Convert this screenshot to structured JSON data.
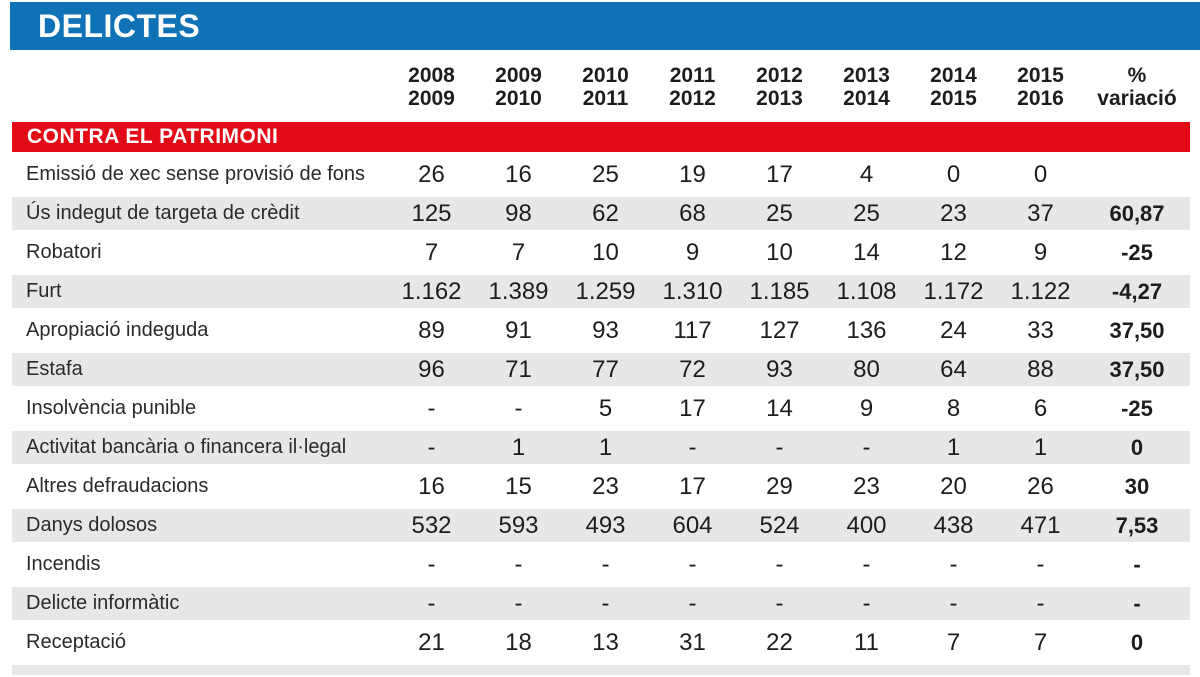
{
  "title": "DELICTES",
  "section": "CONTRA EL PATRIMONI",
  "colors": {
    "header_blue": "#0f72b6",
    "section_red": "#e30a17",
    "row_shade": "#e8e7e7",
    "text": "#1d1d1b"
  },
  "chart_data": {
    "type": "table",
    "title": "DELICTES",
    "section": "CONTRA EL PATRIMONI",
    "columns": [
      {
        "line1": "2008",
        "line2": "2009"
      },
      {
        "line1": "2009",
        "line2": "2010"
      },
      {
        "line1": "2010",
        "line2": "2011"
      },
      {
        "line1": "2011",
        "line2": "2012"
      },
      {
        "line1": "2012",
        "line2": "2013"
      },
      {
        "line1": "2013",
        "line2": "2014"
      },
      {
        "line1": "2014",
        "line2": "2015"
      },
      {
        "line1": "2015",
        "line2": "2016"
      },
      {
        "line1": "%",
        "line2": "variació"
      }
    ],
    "rows": [
      {
        "label": "Emissió de xec sense provisió de fons",
        "values": [
          "26",
          "16",
          "25",
          "19",
          "17",
          "4",
          "0",
          "0"
        ],
        "pct": ""
      },
      {
        "label": "Ús indegut de targeta de crèdit",
        "values": [
          "125",
          "98",
          "62",
          "68",
          "25",
          "25",
          "23",
          "37"
        ],
        "pct": "60,87"
      },
      {
        "label": "Robatori",
        "values": [
          "7",
          "7",
          "10",
          "9",
          "10",
          "14",
          "12",
          "9"
        ],
        "pct": "-25"
      },
      {
        "label": "Furt",
        "values": [
          "1.162",
          "1.389",
          "1.259",
          "1.310",
          "1.185",
          "1.108",
          "1.172",
          "1.122"
        ],
        "pct": "-4,27"
      },
      {
        "label": "Apropiació indeguda",
        "values": [
          "89",
          "91",
          "93",
          "117",
          "127",
          "136",
          "24",
          "33"
        ],
        "pct": "37,50"
      },
      {
        "label": "Estafa",
        "values": [
          "96",
          "71",
          "77",
          "72",
          "93",
          "80",
          "64",
          "88"
        ],
        "pct": "37,50"
      },
      {
        "label": "Insolvència punible",
        "values": [
          "-",
          "-",
          "5",
          "17",
          "14",
          "9",
          "8",
          "6"
        ],
        "pct": "-25"
      },
      {
        "label": "Activitat bancària o financera il·legal",
        "values": [
          "-",
          "1",
          "1",
          "-",
          "-",
          "-",
          "1",
          "1"
        ],
        "pct": "0"
      },
      {
        "label": "Altres defraudacions",
        "values": [
          "16",
          "15",
          "23",
          "17",
          "29",
          "23",
          "20",
          "26"
        ],
        "pct": "30"
      },
      {
        "label": "Danys dolosos",
        "values": [
          "532",
          "593",
          "493",
          "604",
          "524",
          "400",
          "438",
          "471"
        ],
        "pct": "7,53"
      },
      {
        "label": "Incendis",
        "values": [
          "-",
          "-",
          "-",
          "-",
          "-",
          "-",
          "-",
          "-"
        ],
        "pct": "-"
      },
      {
        "label": "Delicte informàtic",
        "values": [
          "-",
          "-",
          "-",
          "-",
          "-",
          "-",
          "-",
          "-"
        ],
        "pct": "-"
      },
      {
        "label": "Receptació",
        "values": [
          "21",
          "18",
          "13",
          "31",
          "22",
          "11",
          "7",
          "7"
        ],
        "pct": "0"
      }
    ]
  }
}
